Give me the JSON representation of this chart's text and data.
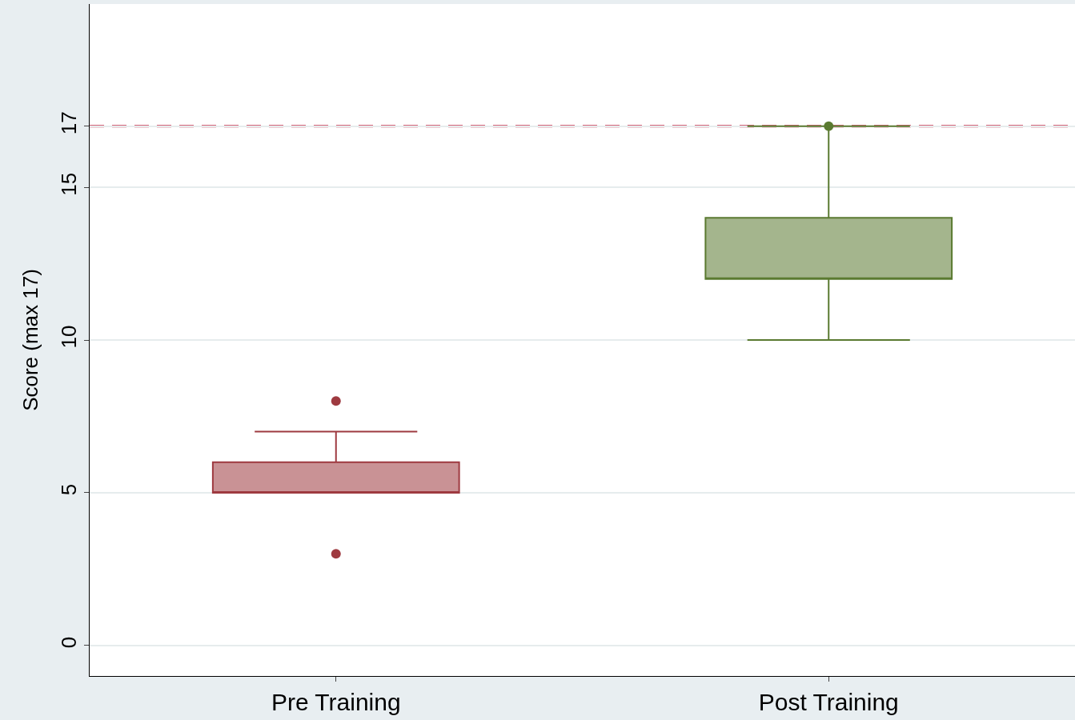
{
  "chart_data": {
    "type": "box",
    "ylabel": "Score (max 17)",
    "categories": [
      "Pre Training",
      "Post Training"
    ],
    "colors": [
      "#9e3a40",
      "#5a7a30"
    ],
    "boxes": [
      {
        "low": 5,
        "q1": 5,
        "median": 5,
        "q3": 6,
        "high": 7,
        "outliers": [
          3,
          8
        ]
      },
      {
        "low": 10,
        "q1": 12,
        "median": 12,
        "q3": 14,
        "high": 17,
        "outliers": [
          17
        ]
      }
    ],
    "ylim": [
      -1,
      21
    ],
    "yticks": [
      0,
      5,
      10,
      15,
      17
    ],
    "grid": "y",
    "ref_lines": [
      {
        "axis": "y",
        "value": 17,
        "color": "#c8334f",
        "line_style": "dashed"
      }
    ]
  }
}
